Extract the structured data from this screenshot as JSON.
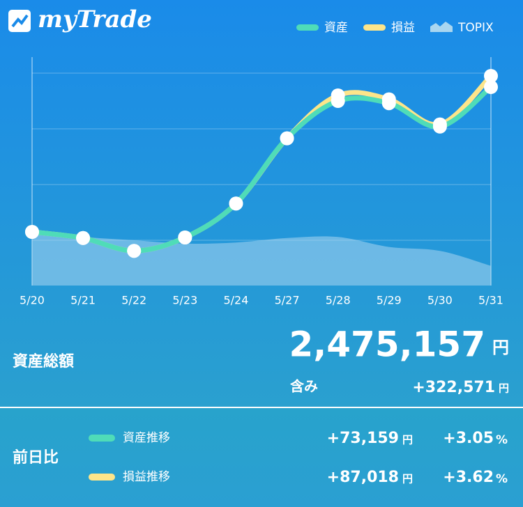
{
  "header": {
    "logo": "myTrade"
  },
  "chart_data": {
    "type": "line",
    "categories": [
      "5/20",
      "5/21",
      "5/22",
      "5/23",
      "5/24",
      "5/27",
      "5/28",
      "5/29",
      "5/30",
      "5/31"
    ],
    "series": [
      {
        "name": "TOPIX",
        "type": "area",
        "color": "#a9d6f0",
        "values": [
          1.15,
          1.06,
          1.0,
          0.94,
          0.96,
          1.04,
          1.06,
          0.88,
          0.81,
          0.54
        ]
      },
      {
        "name": "損益",
        "type": "line",
        "color": "#fde58a",
        "values": [
          1.15,
          1.04,
          0.81,
          1.05,
          1.66,
          2.83,
          3.6,
          3.53,
          3.08,
          3.95
        ]
      },
      {
        "name": "資産",
        "type": "line",
        "color": "#4fdcb8",
        "values": [
          1.15,
          1.04,
          0.81,
          1.05,
          1.66,
          2.83,
          3.5,
          3.46,
          3.04,
          3.75
        ]
      }
    ],
    "legend_order": [
      2,
      1,
      0
    ],
    "ylim": [
      0,
      4.4
    ],
    "gridlines": [
      1,
      2,
      3,
      4
    ]
  },
  "summary": {
    "label": "資産総額",
    "total": "2,475,157",
    "total_unit": "円",
    "unrealized_label": "含み",
    "unrealized": "+322,571",
    "unrealized_unit": "円"
  },
  "daily": {
    "label": "前日比",
    "rows": [
      {
        "name": "資産推移",
        "amount": "+73,159",
        "unit": "円",
        "percent": "+3.05",
        "percent_unit": "%"
      },
      {
        "name": "損益推移",
        "amount": "+87,018",
        "unit": "円",
        "percent": "+3.62",
        "percent_unit": "%"
      }
    ]
  }
}
